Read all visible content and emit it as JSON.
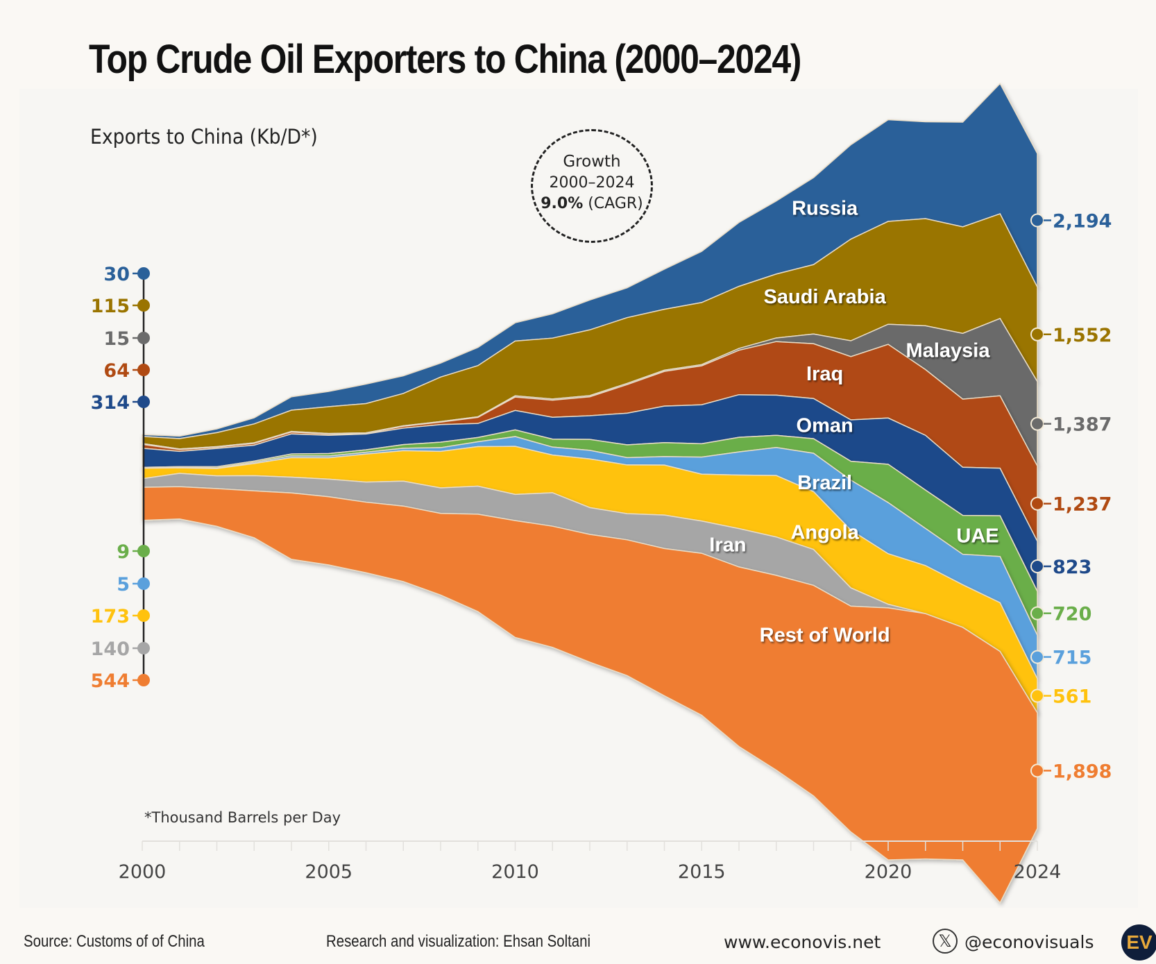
{
  "title": "Top Crude Oil Exporters to China (2000–2024)",
  "y_axis_label": "Exports to China (Kb/D*)",
  "growth_box": {
    "line1": "Growth",
    "line2": "2000–2024",
    "value": "9.0%",
    "suffix": " (CAGR)"
  },
  "footnote": "*Thousand Barrels per Day",
  "footer": {
    "source": "Source: Customs of of China",
    "research": "Research and visualization: Ehsan Soltani",
    "website": "www.econovis.net",
    "handle": "@econovisuals",
    "x_icon_glyph": "𝕏",
    "logo_text": "EV"
  },
  "chart_data": {
    "type": "area",
    "subtype": "streamgraph (stacked, centered)",
    "title": "Top Crude Oil Exporters to China (2000–2024)",
    "xlabel": "",
    "ylabel": "Exports to China (Kb/D*)",
    "x": [
      2000,
      2001,
      2002,
      2003,
      2004,
      2005,
      2006,
      2007,
      2008,
      2009,
      2010,
      2011,
      2012,
      2013,
      2014,
      2015,
      2016,
      2017,
      2018,
      2019,
      2020,
      2021,
      2022,
      2023,
      2024
    ],
    "x_tick_labels": [
      "2000",
      "2005",
      "2010",
      "2015",
      "2020",
      "2024"
    ],
    "legend": "inline labels on streams",
    "series": [
      {
        "name": "Russia",
        "color": "#2a6099",
        "start_label": "30",
        "end_label": "2,194",
        "values": [
          30,
          40,
          60,
          100,
          220,
          250,
          320,
          290,
          230,
          300,
          300,
          400,
          490,
          490,
          660,
          840,
          1050,
          1200,
          1430,
          1550,
          1670,
          1590,
          1720,
          2140,
          2194
        ]
      },
      {
        "name": "Saudi Arabia",
        "color": "#9a7400",
        "start_label": "115",
        "end_label": "1,552",
        "values": [
          115,
          170,
          230,
          310,
          350,
          440,
          480,
          530,
          730,
          840,
          900,
          1000,
          1080,
          1080,
          1000,
          1020,
          1020,
          1050,
          1140,
          1670,
          1690,
          1760,
          1750,
          1720,
          1552
        ]
      },
      {
        "name": "Malaysia",
        "color": "#6b6b6b",
        "start_label": "15",
        "end_label": "1,387",
        "values": [
          15,
          10,
          10,
          10,
          10,
          10,
          10,
          10,
          10,
          10,
          20,
          20,
          20,
          20,
          20,
          20,
          30,
          60,
          160,
          260,
          330,
          720,
          1080,
          1270,
          1387
        ]
      },
      {
        "name": "Iraq",
        "color": "#b04a12",
        "start_label": "64",
        "end_label": "1,237",
        "values": [
          64,
          30,
          20,
          30,
          30,
          20,
          10,
          30,
          40,
          100,
          220,
          280,
          310,
          470,
          570,
          640,
          730,
          880,
          900,
          1040,
          1210,
          1080,
          1120,
          1190,
          1237
        ]
      },
      {
        "name": "Oman",
        "color": "#1f4a8a",
        "start_label": "314",
        "end_label": "823",
        "values": [
          314,
          250,
          300,
          260,
          330,
          300,
          260,
          270,
          290,
          230,
          320,
          360,
          390,
          520,
          600,
          640,
          700,
          660,
          660,
          680,
          760,
          900,
          790,
          780,
          823
        ]
      },
      {
        "name": "UAE",
        "color": "#6aae4a",
        "start_label": "9",
        "end_label": "720",
        "values": [
          9,
          10,
          20,
          20,
          30,
          40,
          40,
          60,
          90,
          70,
          110,
          130,
          180,
          210,
          230,
          220,
          240,
          200,
          240,
          310,
          630,
          630,
          640,
          670,
          720
        ]
      },
      {
        "name": "Brazil",
        "color": "#5aa0dc",
        "start_label": "5",
        "end_label": "715",
        "values": [
          5,
          10,
          10,
          20,
          30,
          30,
          30,
          40,
          60,
          80,
          160,
          130,
          140,
          120,
          140,
          280,
          380,
          460,
          630,
          820,
          840,
          610,
          500,
          760,
          715
        ]
      },
      {
        "name": "Angola",
        "color": "#ffc20e",
        "start_label": "173",
        "end_label": "561",
        "values": [
          173,
          90,
          120,
          200,
          320,
          350,
          460,
          500,
          600,
          650,
          790,
          620,
          800,
          800,
          820,
          770,
          880,
          1010,
          950,
          950,
          830,
          790,
          700,
          800,
          561
        ]
      },
      {
        "name": "Iran",
        "color": "#a6a6a6",
        "start_label": "140",
        "end_label": "",
        "values": [
          140,
          220,
          210,
          250,
          260,
          290,
          330,
          410,
          420,
          460,
          430,
          550,
          440,
          430,
          550,
          530,
          630,
          630,
          590,
          300,
          60,
          0,
          0,
          0,
          0
        ]
      },
      {
        "name": "Rest of World",
        "color": "#ef7d31",
        "start_label": "544",
        "end_label": "1,898",
        "values": [
          544,
          530,
          620,
          770,
          1090,
          1120,
          1160,
          1240,
          1340,
          1600,
          1920,
          1990,
          2100,
          2230,
          2420,
          2660,
          2950,
          3200,
          3460,
          3710,
          4140,
          4030,
          3820,
          4130,
          1898
        ]
      }
    ],
    "end_labels_2024_note": "Iran has no 2024 label (value 0)"
  }
}
